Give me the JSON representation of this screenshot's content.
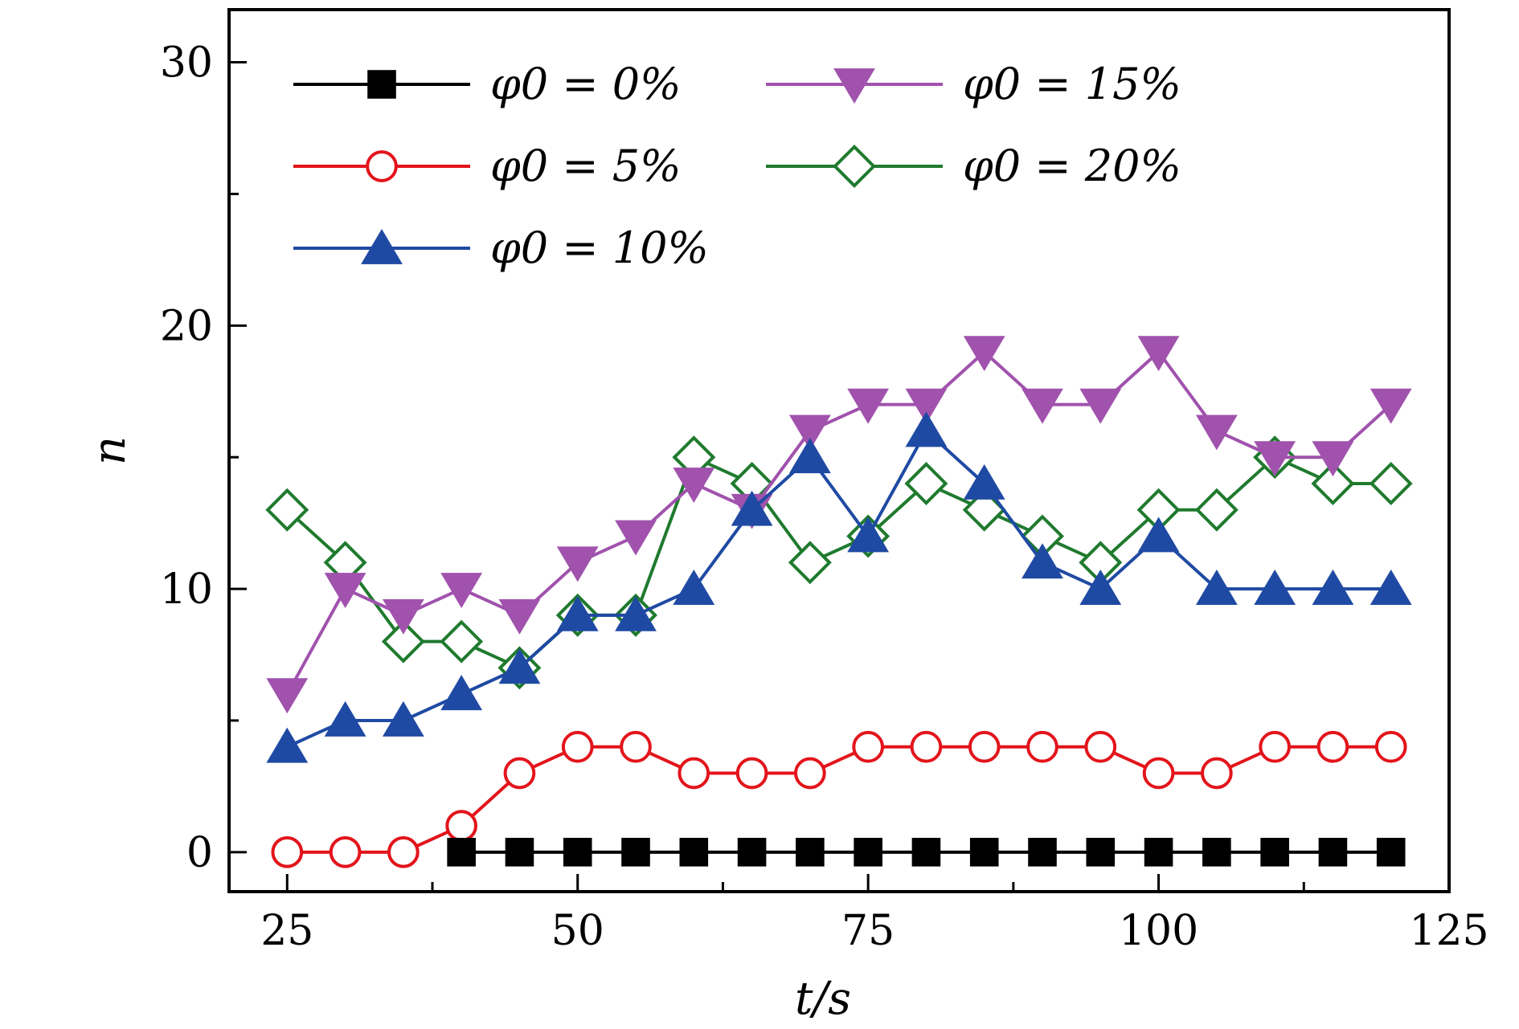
{
  "chart_data": {
    "type": "line",
    "xlabel": "t/s",
    "ylabel": "n",
    "xlim": [
      20,
      125
    ],
    "ylim": [
      -1.5,
      32
    ],
    "xticks": [
      25,
      50,
      75,
      100,
      125
    ],
    "yticks": [
      0,
      10,
      20,
      30
    ],
    "x": [
      25,
      30,
      35,
      40,
      45,
      50,
      55,
      60,
      65,
      70,
      75,
      80,
      85,
      90,
      95,
      100,
      105,
      110,
      115,
      120
    ],
    "legend_position": "top-left",
    "grid": false,
    "series": [
      {
        "name": "φ0 = 0%",
        "color": "#000000",
        "marker": "square-filled",
        "x": [
          40,
          45,
          50,
          55,
          60,
          65,
          70,
          75,
          80,
          85,
          90,
          95,
          100,
          105,
          110,
          115,
          120
        ],
        "values": [
          0,
          0,
          0,
          0,
          0,
          0,
          0,
          0,
          0,
          0,
          0,
          0,
          0,
          0,
          0,
          0,
          0
        ]
      },
      {
        "name": "φ0 = 5%",
        "color": "#e3141b",
        "marker": "circle-open",
        "values": [
          0,
          0,
          0,
          1,
          3,
          4,
          4,
          3,
          3,
          3,
          4,
          4,
          4,
          4,
          4,
          3,
          3,
          4,
          4,
          4
        ]
      },
      {
        "name": "φ0 = 10%",
        "color": "#1f4aa3",
        "marker": "triangle-up-filled",
        "values": [
          4,
          5,
          5,
          6,
          7,
          9,
          9,
          10,
          13,
          15,
          12,
          16,
          14,
          11,
          10,
          12,
          10,
          10,
          10,
          10
        ]
      },
      {
        "name": "φ0 = 15%",
        "color": "#a052ad",
        "marker": "triangle-down-filled",
        "values": [
          6,
          10,
          9,
          10,
          9,
          11,
          12,
          14,
          13,
          16,
          17,
          17,
          19,
          17,
          17,
          19,
          16,
          15,
          15,
          17
        ]
      },
      {
        "name": "φ0 = 20%",
        "color": "#1f7a2e",
        "marker": "diamond-open",
        "values": [
          13,
          11,
          8,
          8,
          7,
          9,
          9,
          15,
          14,
          11,
          12,
          14,
          13,
          12,
          11,
          13,
          13,
          15,
          14,
          14
        ]
      }
    ]
  }
}
